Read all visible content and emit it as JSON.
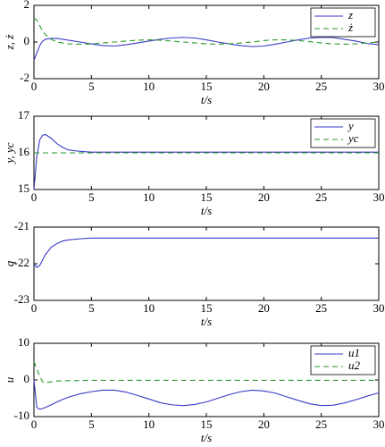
{
  "chart_data": [
    {
      "type": "line",
      "xlabel": "t/s",
      "ylabel": "z, ż",
      "xlim": [
        0,
        30
      ],
      "xticks": [
        0,
        5,
        10,
        15,
        20,
        25,
        30
      ],
      "ylim": [
        -2,
        2
      ],
      "yticks": [
        -2,
        0,
        2
      ],
      "legend": "upper right",
      "x": [
        0,
        0.25,
        0.5,
        0.75,
        1,
        1.5,
        2,
        2.5,
        3,
        4,
        5,
        6,
        7,
        8,
        9,
        10,
        11,
        12,
        13,
        14,
        15,
        16,
        17,
        18,
        19,
        20,
        21,
        22,
        23,
        24,
        25,
        26,
        27,
        28,
        29,
        30
      ],
      "series": [
        {
          "name": "z",
          "color": "#3a3ac8",
          "style": "solid",
          "values": [
            -1,
            -0.6,
            -0.2,
            0.05,
            0.15,
            0.2,
            0.2,
            0.15,
            0.1,
            0,
            -0.1,
            -0.2,
            -0.22,
            -0.15,
            -0.05,
            0.05,
            0.15,
            0.22,
            0.25,
            0.22,
            0.12,
            0,
            -0.1,
            -0.2,
            -0.25,
            -0.22,
            -0.12,
            0,
            0.12,
            0.22,
            0.25,
            0.25,
            0.15,
            0.05,
            -0.08,
            -0.15
          ]
        },
        {
          "name": "ż",
          "color": "#2a9a2a",
          "style": "dashed",
          "values": [
            1.3,
            1.2,
            0.9,
            0.6,
            0.4,
            0.15,
            0,
            -0.05,
            -0.1,
            -0.12,
            -0.1,
            -0.05,
            0,
            0.05,
            0.1,
            0.12,
            0.1,
            0.05,
            0,
            -0.05,
            -0.1,
            -0.12,
            -0.1,
            -0.05,
            0,
            0.08,
            0.12,
            0.12,
            0.08,
            0.02,
            -0.05,
            -0.1,
            -0.12,
            -0.1,
            -0.05,
            0
          ]
        }
      ]
    },
    {
      "type": "line",
      "xlabel": "t/s",
      "ylabel": "y, yc",
      "xlim": [
        0,
        30
      ],
      "xticks": [
        0,
        5,
        10,
        15,
        20,
        25,
        30
      ],
      "ylim": [
        15,
        17
      ],
      "yticks": [
        15,
        16,
        17
      ],
      "legend": "upper right",
      "x": [
        0,
        0.25,
        0.5,
        0.75,
        1,
        1.5,
        2,
        2.5,
        3,
        4,
        5,
        6,
        7,
        8,
        9,
        10,
        11,
        12,
        13,
        14,
        15,
        16,
        17,
        18,
        19,
        20,
        21,
        22,
        23,
        24,
        25,
        26,
        27,
        28,
        29,
        30
      ],
      "series": [
        {
          "name": "y",
          "color": "#3a3ac8",
          "style": "solid",
          "values": [
            15,
            15.9,
            16.35,
            16.48,
            16.5,
            16.4,
            16.25,
            16.15,
            16.08,
            16.04,
            16.02,
            16.02,
            16.02,
            16.02,
            16.02,
            16.02,
            16.02,
            16.02,
            16.02,
            16.02,
            16.02,
            16.02,
            16.02,
            16.02,
            16.02,
            16.02,
            16.02,
            16.02,
            16.02,
            16.02,
            16.02,
            16.02,
            16.02,
            16.02,
            16.02,
            16.02
          ]
        },
        {
          "name": "yc",
          "color": "#2a9a2a",
          "style": "dashed",
          "values": [
            16,
            16,
            16,
            16,
            16,
            16,
            16,
            16,
            16,
            16,
            16,
            16,
            16,
            16,
            16,
            16,
            16,
            16,
            16,
            16,
            16,
            16,
            16,
            16,
            16,
            16,
            16,
            16,
            16,
            16,
            16,
            16,
            16,
            16,
            16,
            16
          ]
        }
      ]
    },
    {
      "type": "line",
      "xlabel": "t/s",
      "ylabel": "q",
      "xlim": [
        0,
        30
      ],
      "xticks": [
        0,
        5,
        10,
        15,
        20,
        25,
        30
      ],
      "ylim": [
        -23,
        -21
      ],
      "yticks": [
        -23,
        -22,
        -21
      ],
      "x": [
        0,
        0.25,
        0.5,
        0.75,
        1,
        1.5,
        2,
        2.5,
        3,
        4,
        5,
        6,
        7,
        8,
        9,
        10,
        11,
        12,
        13,
        14,
        15,
        16,
        17,
        18,
        19,
        20,
        21,
        22,
        23,
        24,
        25,
        26,
        27,
        28,
        29,
        30
      ],
      "series": [
        {
          "color": "#3a3ac8",
          "style": "solid",
          "values": [
            -22,
            -22.1,
            -22.05,
            -21.9,
            -21.75,
            -21.55,
            -21.45,
            -21.38,
            -21.35,
            -21.32,
            -21.3,
            -21.3,
            -21.3,
            -21.3,
            -21.3,
            -21.3,
            -21.3,
            -21.3,
            -21.3,
            -21.3,
            -21.3,
            -21.3,
            -21.3,
            -21.3,
            -21.3,
            -21.3,
            -21.3,
            -21.3,
            -21.3,
            -21.3,
            -21.3,
            -21.3,
            -21.3,
            -21.3,
            -21.3,
            -21.3
          ]
        }
      ]
    },
    {
      "type": "line",
      "xlabel": "t/s",
      "ylabel": "u",
      "xlim": [
        0,
        30
      ],
      "xticks": [
        0,
        5,
        10,
        15,
        20,
        25,
        30
      ],
      "ylim": [
        -10,
        10
      ],
      "yticks": [
        -10,
        0,
        10
      ],
      "legend": "upper right",
      "x": [
        0,
        0.25,
        0.5,
        0.75,
        1,
        1.5,
        2,
        2.5,
        3,
        4,
        5,
        6,
        7,
        8,
        9,
        10,
        11,
        12,
        13,
        14,
        15,
        16,
        17,
        18,
        19,
        20,
        21,
        22,
        23,
        24,
        25,
        26,
        27,
        28,
        29,
        30
      ],
      "series": [
        {
          "name": "u1",
          "color": "#3a3ac8",
          "style": "solid",
          "values": [
            0,
            -7.5,
            -8,
            -7.8,
            -7.5,
            -6.8,
            -6,
            -5.3,
            -4.7,
            -3.8,
            -3.2,
            -2.8,
            -2.8,
            -3.3,
            -4.2,
            -5.2,
            -6.2,
            -6.8,
            -7,
            -6.7,
            -6,
            -5,
            -4,
            -3.2,
            -2.8,
            -3,
            -3.6,
            -4.6,
            -5.6,
            -6.5,
            -7,
            -6.9,
            -6.3,
            -5.4,
            -4.4,
            -3.5
          ]
        },
        {
          "name": "u2",
          "color": "#2a9a2a",
          "style": "dashed",
          "values": [
            5,
            3,
            1,
            -0.5,
            -0.8,
            -0.5,
            -0.3,
            -0.2,
            -0.2,
            -0.15,
            -0.1,
            -0.1,
            -0.1,
            -0.1,
            -0.1,
            -0.1,
            -0.1,
            -0.1,
            -0.1,
            -0.1,
            -0.1,
            -0.1,
            -0.1,
            -0.1,
            -0.1,
            -0.1,
            -0.1,
            -0.1,
            -0.1,
            -0.1,
            -0.1,
            -0.1,
            -0.1,
            -0.1,
            -0.1,
            -0.1
          ]
        }
      ]
    }
  ]
}
